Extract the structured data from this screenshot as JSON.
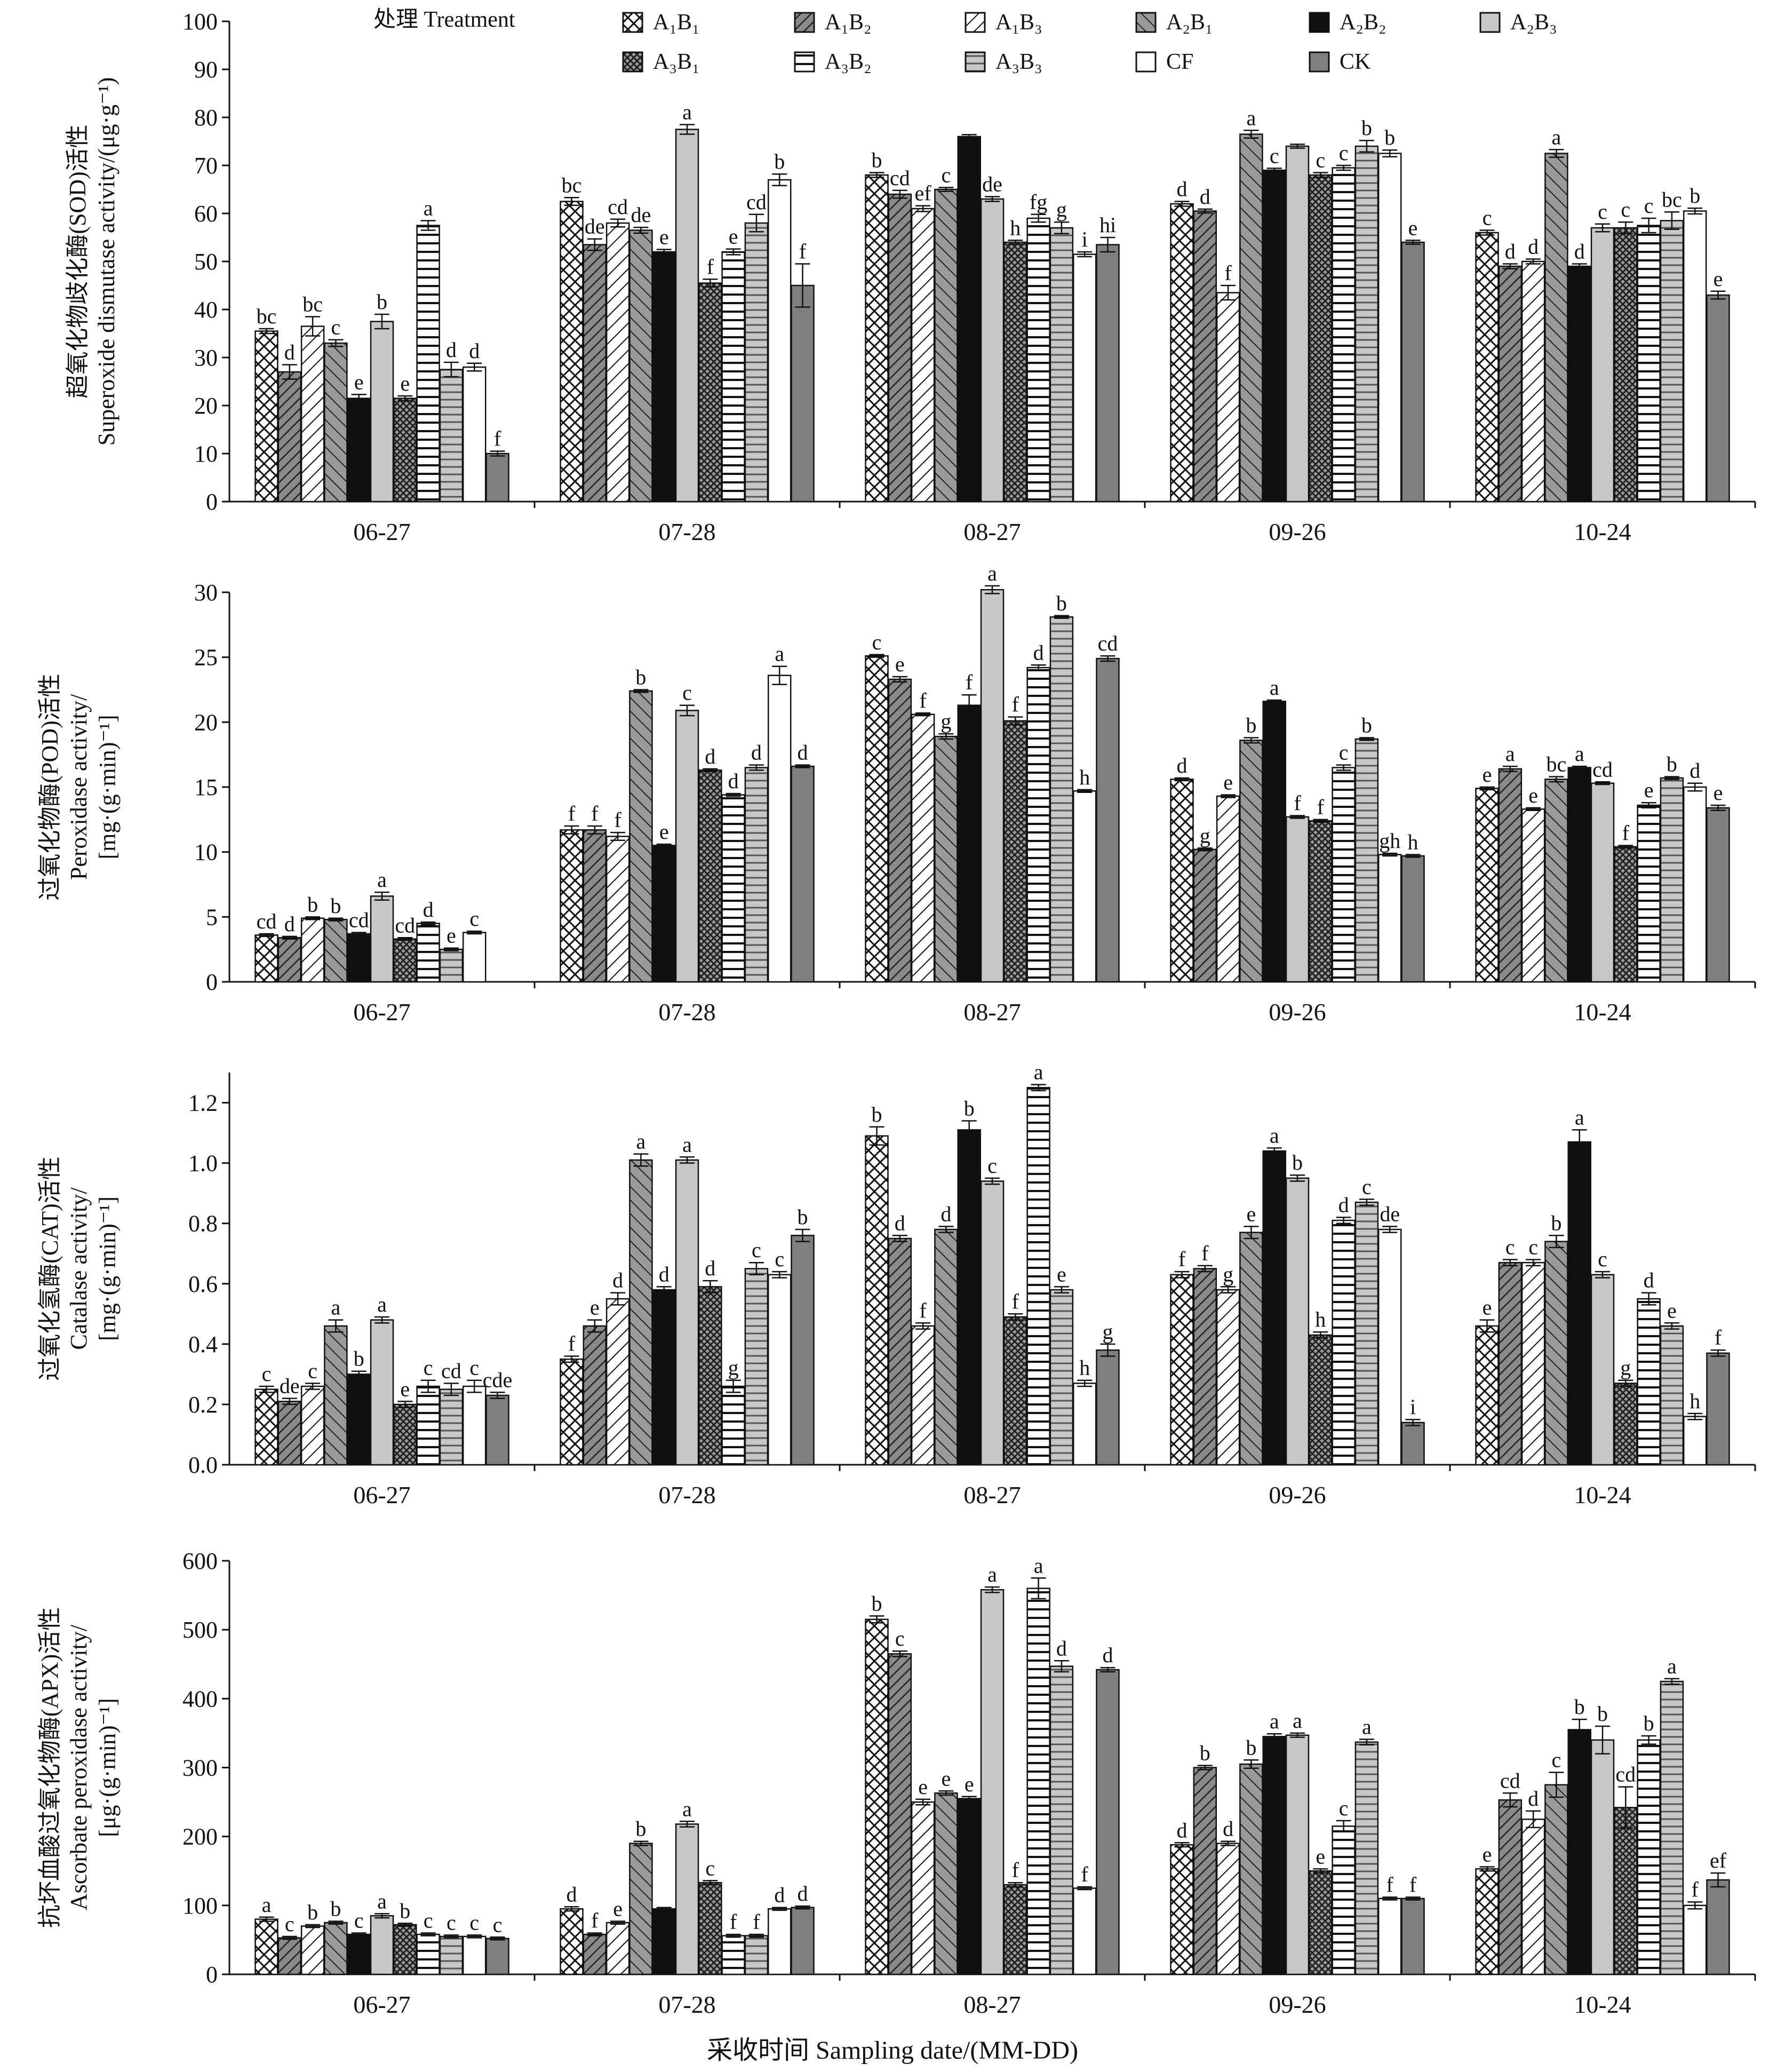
{
  "legend": {
    "title": "处理 Treatment",
    "items": [
      {
        "label": "A₁B₁",
        "pattern": "cross"
      },
      {
        "label": "A₁B₂",
        "pattern": "hatchdk"
      },
      {
        "label": "A₁B₃",
        "pattern": "bslash"
      },
      {
        "label": "A₂B₁",
        "pattern": "gslash"
      },
      {
        "label": "A₂B₂",
        "pattern": "black"
      },
      {
        "label": "A₂B₃",
        "pattern": "lightgray"
      },
      {
        "label": "A₃B₁",
        "pattern": "dots"
      },
      {
        "label": "A₃B₂",
        "pattern": "hlines"
      },
      {
        "label": "A₃B₃",
        "pattern": "hgray"
      },
      {
        "label": "CF",
        "pattern": "white"
      },
      {
        "label": "CK",
        "pattern": "darkgray"
      }
    ]
  },
  "xlabel": "采收时间 Sampling date/(MM-DD)",
  "colors": {
    "black": "#111111",
    "lightgray": "#c8c8c8",
    "darkgray": "#7f7f7f",
    "medgray": "#9a9a9a"
  },
  "chart_data": [
    {
      "type": "bar",
      "ylabel_cn": "超氧化物歧化酶(SOD)活性",
      "ylabel_en": "Superoxide dismutase activity/(μg·g⁻¹)",
      "ylim": [
        0,
        100
      ],
      "yticks": [
        "0",
        "10",
        "20",
        "30",
        "40",
        "50",
        "60",
        "70",
        "80",
        "90",
        "100"
      ],
      "categories": [
        "06-27",
        "07-28",
        "08-27",
        "09-26",
        "10-24"
      ],
      "values": [
        [
          35.5,
          27,
          36.5,
          33,
          21.5,
          37.5,
          21.5,
          57.5,
          27.5,
          28,
          10
        ],
        [
          62.5,
          53.5,
          58,
          56.5,
          52,
          77.5,
          45.5,
          52,
          58,
          67,
          45
        ],
        [
          68,
          64,
          61,
          65,
          76,
          63,
          54,
          59,
          57,
          51.5,
          53.5
        ],
        [
          62,
          60.5,
          43.5,
          76.5,
          69,
          74,
          68,
          69.5,
          74,
          72.5,
          54
        ],
        [
          56,
          49,
          50,
          72.5,
          49,
          57,
          57,
          57.5,
          58.5,
          60.5,
          43
        ]
      ],
      "errors": [
        [
          0.5,
          1.5,
          2,
          0.7,
          0.8,
          1.5,
          0.5,
          1,
          1.5,
          0.8,
          0.5
        ],
        [
          0.8,
          1.2,
          0.8,
          0.6,
          0.5,
          1,
          0.8,
          0.6,
          1.8,
          1.2,
          4.5
        ],
        [
          0.5,
          0.8,
          0.6,
          0.4,
          0.4,
          0.5,
          0.4,
          0.8,
          1.2,
          0.5,
          1.5
        ],
        [
          0.5,
          0.4,
          1.5,
          0.8,
          0.4,
          0.4,
          0.5,
          0.5,
          1.2,
          0.7,
          0.4
        ],
        [
          0.5,
          0.5,
          0.5,
          0.8,
          0.5,
          0.8,
          1.2,
          1.5,
          1.8,
          0.6,
          0.8
        ]
      ],
      "letters": [
        [
          "bc",
          "d",
          "bc",
          "c",
          "e",
          "b",
          "e",
          "a",
          "d",
          "d",
          "f"
        ],
        [
          "bc",
          "de",
          "cd",
          "de",
          "e",
          "a",
          "f",
          "e",
          "cd",
          "b",
          "f"
        ],
        [
          "b",
          "cd",
          "ef",
          "c",
          "",
          "de",
          "h",
          "fg",
          "g",
          "i",
          "hi"
        ],
        [
          "d",
          "d",
          "f",
          "a",
          "c",
          "",
          "c",
          "c",
          "b",
          "b",
          "e"
        ],
        [
          "c",
          "d",
          "d",
          "a",
          "d",
          "c",
          "c",
          "c",
          "bc",
          "b",
          "e"
        ]
      ]
    },
    {
      "type": "bar",
      "ylabel_cn": "过氧化物酶(POD)活性",
      "ylabel_en": "Peroxidase activity/",
      "ylabel_unit": "[mg·(g·min)⁻¹]",
      "ylim": [
        0,
        30
      ],
      "yticks": [
        "0",
        "5",
        "10",
        "15",
        "20",
        "25",
        "30"
      ],
      "categories": [
        "06-27",
        "07-28",
        "08-27",
        "09-26",
        "10-24"
      ],
      "values": [
        [
          3.6,
          3.4,
          4.9,
          4.8,
          3.7,
          6.6,
          3.3,
          4.5,
          2.5,
          3.8,
          0
        ],
        [
          11.7,
          11.7,
          11.2,
          22.4,
          10.5,
          20.9,
          16.3,
          14.4,
          16.5,
          23.6,
          16.6
        ],
        [
          25.1,
          23.3,
          20.6,
          18.9,
          21.3,
          30.2,
          20.1,
          24.2,
          28.1,
          14.7,
          24.9
        ],
        [
          15.6,
          10.2,
          14.3,
          18.6,
          21.6,
          12.7,
          12.4,
          16.5,
          18.7,
          9.8,
          9.7
        ],
        [
          14.9,
          16.4,
          13.3,
          15.6,
          16.5,
          15.3,
          10.4,
          13.6,
          15.7,
          15.0,
          13.4
        ]
      ],
      "errors": [
        [
          0.1,
          0.1,
          0.1,
          0.1,
          0.1,
          0.3,
          0.1,
          0.1,
          0.1,
          0.1,
          0
        ],
        [
          0.3,
          0.3,
          0.3,
          0.1,
          0.1,
          0.4,
          0.1,
          0.1,
          0.2,
          0.7,
          0.1
        ],
        [
          0.1,
          0.2,
          0.1,
          0.2,
          0.8,
          0.3,
          0.3,
          0.2,
          0.1,
          0.1,
          0.2
        ],
        [
          0.1,
          0.1,
          0.1,
          0.2,
          0.1,
          0.1,
          0.1,
          0.2,
          0.1,
          0.1,
          0.1
        ],
        [
          0.1,
          0.2,
          0.1,
          0.2,
          0.1,
          0.1,
          0.1,
          0.2,
          0.1,
          0.3,
          0.2
        ]
      ],
      "letters": [
        [
          "cd",
          "d",
          "b",
          "b",
          "cd",
          "a",
          "cd",
          "d",
          "e",
          "c",
          ""
        ],
        [
          "f",
          "f",
          "f",
          "b",
          "e",
          "c",
          "d",
          "d",
          "d",
          "a",
          "d"
        ],
        [
          "c",
          "e",
          "f",
          "g",
          "f",
          "a",
          "f",
          "d",
          "b",
          "h",
          "cd"
        ],
        [
          "d",
          "g",
          "e",
          "b",
          "a",
          "f",
          "f",
          "c",
          "b",
          "gh",
          "h"
        ],
        [
          "e",
          "a",
          "e",
          "bc",
          "a",
          "cd",
          "f",
          "e",
          "b",
          "d",
          "e"
        ]
      ]
    },
    {
      "type": "bar",
      "ylabel_cn": "过氧化氢酶(CAT)活性",
      "ylabel_en": "Catalase activity/",
      "ylabel_unit": "[mg·(g·min)⁻¹]",
      "ylim": [
        0,
        1.3
      ],
      "yticks": [
        "0.0",
        "0.2",
        "0.4",
        "0.6",
        "0.8",
        "1.0",
        "1.2"
      ],
      "categories": [
        "06-27",
        "07-28",
        "08-27",
        "09-26",
        "10-24"
      ],
      "values": [
        [
          0.25,
          0.21,
          0.26,
          0.46,
          0.3,
          0.48,
          0.2,
          0.26,
          0.25,
          0.26,
          0.23
        ],
        [
          0.35,
          0.46,
          0.55,
          1.01,
          0.58,
          1.01,
          0.59,
          0.26,
          0.65,
          0.63,
          0.76
        ],
        [
          1.09,
          0.75,
          0.46,
          0.78,
          1.11,
          0.94,
          0.49,
          1.25,
          0.58,
          0.27,
          0.38
        ],
        [
          0.63,
          0.65,
          0.58,
          0.77,
          1.04,
          0.95,
          0.43,
          0.81,
          0.87,
          0.78,
          0.14
        ],
        [
          0.46,
          0.67,
          0.67,
          0.74,
          1.07,
          0.63,
          0.27,
          0.55,
          0.46,
          0.16,
          0.37
        ]
      ],
      "errors": [
        [
          0.01,
          0.01,
          0.01,
          0.02,
          0.01,
          0.01,
          0.01,
          0.02,
          0.02,
          0.02,
          0.01
        ],
        [
          0.01,
          0.02,
          0.02,
          0.02,
          0.01,
          0.01,
          0.02,
          0.02,
          0.02,
          0.01,
          0.02
        ],
        [
          0.03,
          0.01,
          0.01,
          0.01,
          0.03,
          0.01,
          0.01,
          0.01,
          0.01,
          0.01,
          0.02
        ],
        [
          0.01,
          0.01,
          0.01,
          0.02,
          0.01,
          0.01,
          0.01,
          0.01,
          0.01,
          0.01,
          0.01
        ],
        [
          0.02,
          0.01,
          0.01,
          0.02,
          0.04,
          0.01,
          0.01,
          0.02,
          0.01,
          0.01,
          0.01
        ]
      ],
      "letters": [
        [
          "c",
          "de",
          "c",
          "a",
          "b",
          "a",
          "e",
          "c",
          "cd",
          "c",
          "cde"
        ],
        [
          "f",
          "e",
          "d",
          "a",
          "d",
          "a",
          "d",
          "g",
          "c",
          "c",
          "b"
        ],
        [
          "b",
          "d",
          "f",
          "d",
          "b",
          "c",
          "f",
          "a",
          "e",
          "h",
          "g"
        ],
        [
          "f",
          "f",
          "g",
          "e",
          "a",
          "b",
          "h",
          "d",
          "c",
          "de",
          "i"
        ],
        [
          "e",
          "c",
          "c",
          "b",
          "a",
          "c",
          "g",
          "d",
          "e",
          "h",
          "f"
        ]
      ]
    },
    {
      "type": "bar",
      "ylabel_cn": "抗坏血酸过氧化物酶(APX)活性",
      "ylabel_en": "Ascorbate peroxidase activity/",
      "ylabel_unit": "[μg·(g·min)⁻¹]",
      "ylim": [
        0,
        600
      ],
      "yticks": [
        "0",
        "100",
        "200",
        "300",
        "400",
        "500",
        "600"
      ],
      "categories": [
        "06-27",
        "07-28",
        "08-27",
        "09-26",
        "10-24"
      ],
      "values": [
        [
          80,
          53,
          70,
          75,
          58,
          85,
          72,
          58,
          55,
          55,
          52
        ],
        [
          95,
          58,
          75,
          190,
          95,
          218,
          133,
          56,
          56,
          95,
          97
        ],
        [
          515,
          465,
          250,
          263,
          255,
          558,
          130,
          560,
          447,
          125,
          442
        ],
        [
          188,
          300,
          190,
          305,
          345,
          347,
          150,
          215,
          337,
          110,
          110
        ],
        [
          153,
          253,
          225,
          275,
          355,
          340,
          242,
          340,
          425,
          100,
          137
        ]
      ],
      "errors": [
        [
          3,
          2,
          2,
          2,
          2,
          3,
          2,
          2,
          2,
          2,
          2
        ],
        [
          3,
          2,
          2,
          3,
          2,
          4,
          3,
          2,
          2,
          2,
          2
        ],
        [
          5,
          4,
          4,
          3,
          3,
          4,
          3,
          15,
          8,
          2,
          3
        ],
        [
          3,
          3,
          3,
          6,
          4,
          3,
          3,
          8,
          4,
          2,
          2
        ],
        [
          3,
          10,
          12,
          18,
          15,
          20,
          30,
          6,
          4,
          5,
          10
        ]
      ],
      "letters": [
        [
          "a",
          "c",
          "b",
          "b",
          "c",
          "a",
          "b",
          "c",
          "c",
          "c",
          "c"
        ],
        [
          "d",
          "f",
          "e",
          "b",
          "",
          "a",
          "c",
          "f",
          "f",
          "d",
          "d"
        ],
        [
          "b",
          "c",
          "e",
          "e",
          "e",
          "a",
          "f",
          "a",
          "d",
          "f",
          "d"
        ],
        [
          "d",
          "b",
          "d",
          "b",
          "a",
          "a",
          "e",
          "c",
          "a",
          "f",
          "f"
        ],
        [
          "e",
          "cd",
          "d",
          "c",
          "b",
          "b",
          "cd",
          "b",
          "a",
          "f",
          "ef"
        ]
      ]
    }
  ]
}
